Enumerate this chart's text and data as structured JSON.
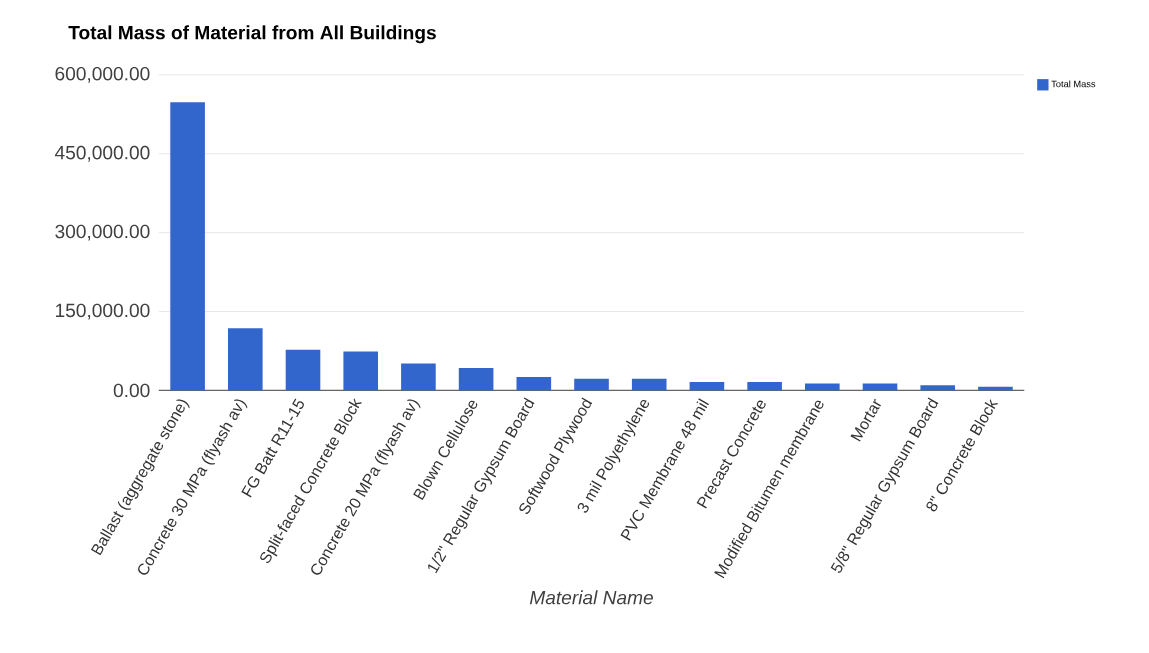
{
  "chart_data": {
    "type": "bar",
    "title": "Total Mass of Material from All Buildings",
    "xlabel": "Material Name",
    "categories": [
      "Ballast (aggregate stone)",
      "Concrete 30 MPa (flyash av)",
      "FG Batt R11-15",
      "Split-faced Concrete Block",
      "Concrete 20 MPa (flyash av)",
      "Blown Cellulose",
      "1/2\" Regular Gypsum Board",
      "Softwood Plywood",
      "3 mil Polyethylene",
      "PVC Membrane 48 mil",
      "Precast Concrete",
      "Modified Bitumen membrane",
      "Mortar",
      "5/8\" Regular Gypsum Board",
      "8\" Concrete Block"
    ],
    "series": [
      {
        "name": "Total Mass",
        "color": "#3366cc",
        "values": [
          548000,
          118000,
          77500,
          74000,
          51000,
          42500,
          25700,
          22000,
          22000,
          16000,
          16000,
          13000,
          13000,
          10000,
          7000
        ]
      }
    ],
    "ylim": [
      0,
      600000
    ],
    "yticks": [
      {
        "value": 0,
        "label": "0.00"
      },
      {
        "value": 150000,
        "label": "150,000.00"
      },
      {
        "value": 300000,
        "label": "300,000.00"
      },
      {
        "value": 450000,
        "label": "450,000.00"
      },
      {
        "value": 600000,
        "label": "600,000.00"
      }
    ],
    "grid": "y",
    "legend": "top right"
  }
}
